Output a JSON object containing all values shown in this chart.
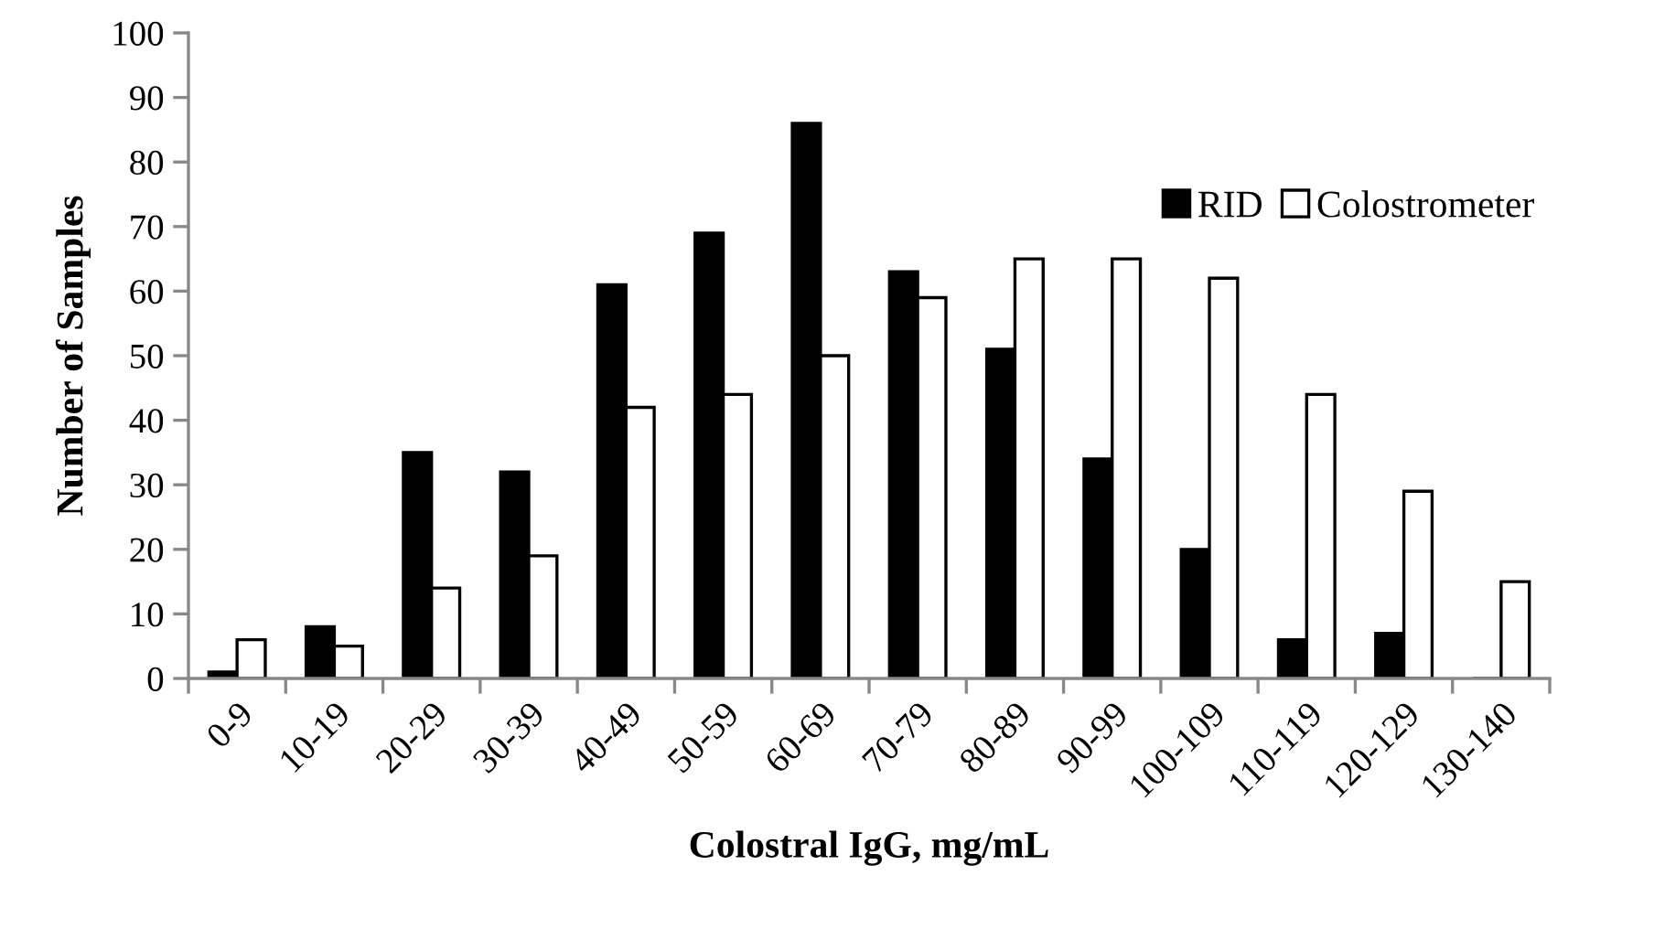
{
  "chart_data": {
    "type": "bar",
    "xlabel": "Colostral IgG, mg/mL",
    "ylabel": "Number of Samples",
    "categories": [
      "0-9",
      "10-19",
      "20-29",
      "30-39",
      "40-49",
      "50-59",
      "60-69",
      "70-79",
      "80-89",
      "90-99",
      "100-109",
      "110-119",
      "120-129",
      "130-140"
    ],
    "series": [
      {
        "name": "RID",
        "color": "#000000",
        "values": [
          1,
          8,
          35,
          32,
          61,
          69,
          86,
          63,
          51,
          34,
          20,
          6,
          7,
          0
        ]
      },
      {
        "name": "Colostrometer",
        "color": "#ffffff",
        "values": [
          6,
          5,
          14,
          19,
          42,
          44,
          50,
          59,
          65,
          65,
          62,
          44,
          29,
          15
        ]
      }
    ],
    "ylim": [
      0,
      100
    ],
    "yticks": [
      0,
      10,
      20,
      30,
      40,
      50,
      60,
      70,
      80,
      90,
      100
    ],
    "grid": false,
    "legend": "top right"
  }
}
